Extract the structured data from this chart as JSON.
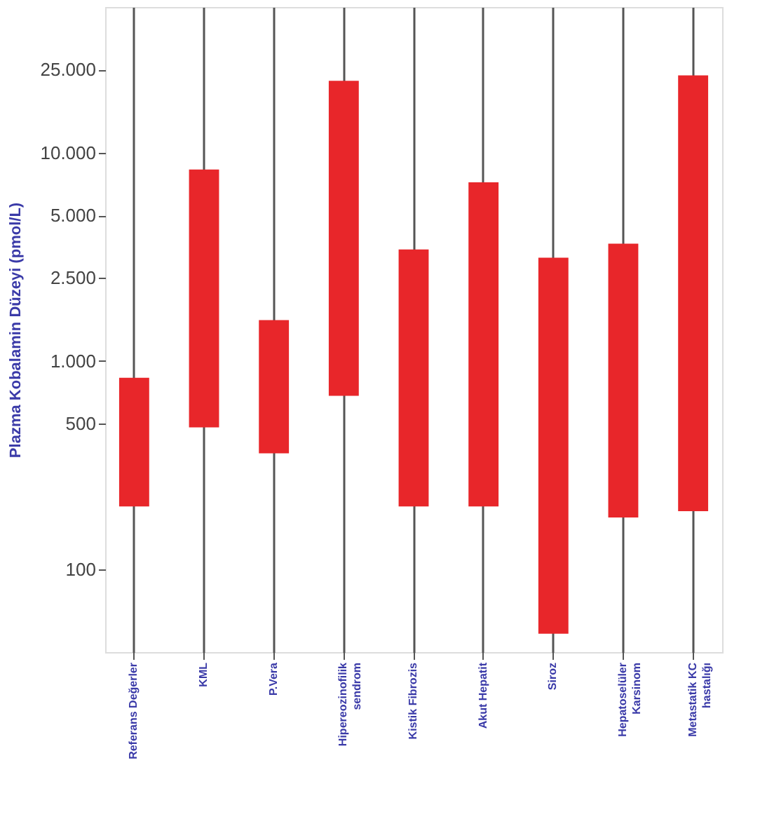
{
  "chart_data": {
    "type": "bar",
    "ylabel": "Plazma Kobalamin Düzeyi (pmol/L)",
    "categories": [
      "Referans Değerler",
      "KML",
      "P.Vera",
      "Hipereozinofilik\nsendrom",
      "Kistik Fibrozis",
      "Akut Hepatit",
      "Siroz",
      "Hepatoselüler\nKarsinom",
      "Metastatik KC\nhastalığı"
    ],
    "base": [
      200,
      480,
      360,
      680,
      200,
      200,
      49,
      177,
      190
    ],
    "values": [
      630,
      7820,
      1210,
      21420,
      3230,
      7000,
      3080,
      3480,
      23310
    ],
    "color": "#e8262a",
    "log": "y",
    "ylim": [
      40,
      50000
    ],
    "yticks": [
      100,
      500,
      {
        "value": 1000,
        "label": "1.000"
      },
      {
        "value": 2500,
        "label": "2.500"
      },
      {
        "value": 5000,
        "label": "5.000"
      },
      {
        "value": 10000,
        "label": "10.000"
      },
      {
        "value": 25000,
        "label": "25.000"
      }
    ],
    "grid": "x"
  }
}
